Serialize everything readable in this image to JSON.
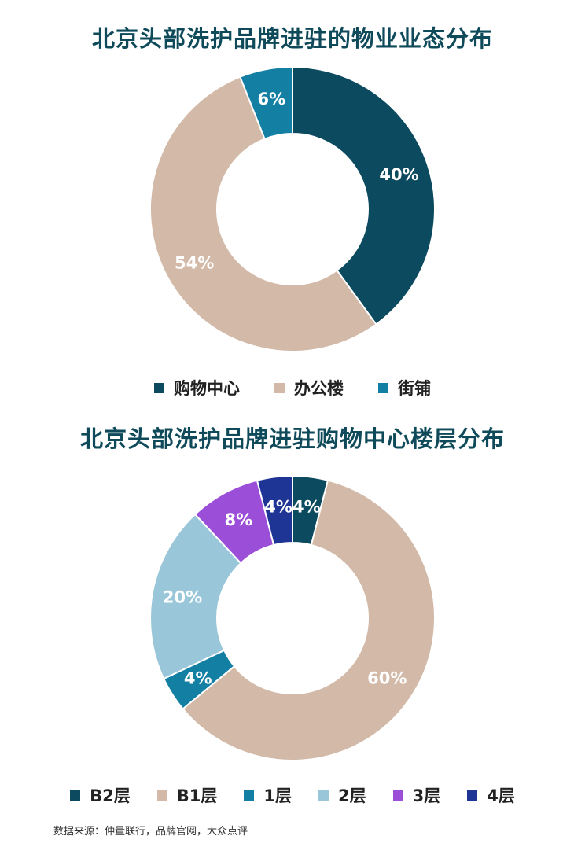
{
  "chart_data": [
    {
      "type": "pie",
      "title": "北京头部洗护品牌进驻的物业业态分布",
      "categories": [
        "购物中心",
        "办公楼",
        "街铺"
      ],
      "values": [
        40,
        54,
        6
      ],
      "labels": [
        "40%",
        "54%",
        "6%"
      ],
      "colors": [
        "#0c4a5f",
        "#d2b9a8",
        "#127fa3"
      ],
      "label_colors": [
        "#ffffff",
        "#ffffff",
        "#ffffff"
      ],
      "legend": "bottom"
    },
    {
      "type": "pie",
      "title": "北京头部洗护品牌进驻购物中心楼层分布",
      "categories": [
        "B2层",
        "B1层",
        "1层",
        "2层",
        "3层",
        "4层"
      ],
      "values": [
        4,
        60,
        4,
        20,
        8,
        4
      ],
      "labels": [
        "4%",
        "60%",
        "4%",
        "20%",
        "8%",
        "4%"
      ],
      "colors": [
        "#0c4a5f",
        "#d2b9a8",
        "#127fa3",
        "#99c6d8",
        "#9b4fd8",
        "#1e3596"
      ],
      "label_colors": [
        "#ffffff",
        "#ffffff",
        "#ffffff",
        "#ffffff",
        "#ffffff",
        "#ffffff"
      ],
      "legend": "bottom"
    }
  ],
  "source": "数据来源：仲量联行，品牌官网，大众点评"
}
